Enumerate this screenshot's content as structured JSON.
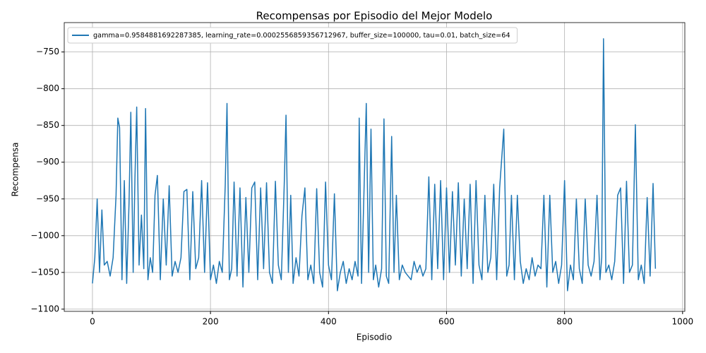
{
  "chart_data": {
    "type": "line",
    "title": "Recompensas por Episodio del Mejor Modelo",
    "x_label": "Episodio",
    "y_label": "Recompensa",
    "grid": true,
    "legend": "upper left",
    "xlim": [
      -47.8,
      1003.8
    ],
    "ylim": [
      -1103,
      -710
    ],
    "xticks": [
      0,
      200,
      400,
      600,
      800,
      1000
    ],
    "yticks": [
      {
        "value": -1100,
        "label": "−1100"
      },
      {
        "value": -1050,
        "label": "−1050"
      },
      {
        "value": -1000,
        "label": "−1000"
      },
      {
        "value": -950,
        "label": "−950"
      },
      {
        "value": -900,
        "label": "−900"
      },
      {
        "value": -850,
        "label": "−850"
      },
      {
        "value": -800,
        "label": "−800"
      },
      {
        "value": -750,
        "label": "−750"
      }
    ],
    "x": [
      0,
      4,
      8,
      12,
      16,
      20,
      25,
      30,
      35,
      40,
      43,
      46,
      50,
      54,
      58,
      62,
      65,
      69,
      72,
      75,
      79,
      83,
      87,
      90,
      94,
      98,
      102,
      106,
      110,
      115,
      120,
      125,
      130,
      135,
      140,
      145,
      150,
      155,
      160,
      165,
      170,
      175,
      180,
      185,
      190,
      195,
      200,
      205,
      210,
      215,
      220,
      225,
      228,
      232,
      236,
      240,
      245,
      250,
      255,
      260,
      265,
      270,
      275,
      280,
      285,
      290,
      295,
      300,
      305,
      310,
      315,
      320,
      325,
      328,
      332,
      336,
      340,
      345,
      350,
      355,
      360,
      365,
      370,
      375,
      380,
      385,
      390,
      395,
      400,
      405,
      410,
      415,
      420,
      425,
      430,
      435,
      440,
      445,
      450,
      452,
      456,
      460,
      464,
      468,
      472,
      476,
      480,
      485,
      490,
      494,
      498,
      502,
      507,
      511,
      515,
      520,
      525,
      530,
      535,
      540,
      545,
      550,
      555,
      560,
      565,
      570,
      575,
      580,
      585,
      590,
      595,
      600,
      605,
      610,
      615,
      620,
      625,
      630,
      635,
      640,
      645,
      650,
      655,
      660,
      665,
      670,
      675,
      680,
      685,
      690,
      697,
      702,
      706,
      710,
      715,
      720,
      725,
      730,
      735,
      740,
      745,
      750,
      755,
      760,
      765,
      770,
      775,
      780,
      785,
      790,
      795,
      800,
      805,
      810,
      815,
      820,
      825,
      830,
      835,
      840,
      845,
      850,
      855,
      860,
      863,
      866,
      870,
      875,
      880,
      885,
      890,
      895,
      900,
      905,
      910,
      915,
      920,
      925,
      930,
      935,
      940,
      945,
      950,
      954
    ],
    "series": [
      {
        "name": "gamma=0.9584881692287385, learning_rate=0.0002556859356712967, buffer_size=100000, tau=0.01, batch_size=64",
        "color": "#1f77b4",
        "values": [
          -1065,
          -1030,
          -950,
          -1050,
          -965,
          -1040,
          -1035,
          -1055,
          -1030,
          -945,
          -840,
          -853,
          -1060,
          -925,
          -1065,
          -955,
          -832,
          -1050,
          -922,
          -825,
          -1040,
          -972,
          -1045,
          -827,
          -1060,
          -1030,
          -1050,
          -945,
          -918,
          -1060,
          -950,
          -1040,
          -932,
          -1055,
          -1035,
          -1050,
          -1030,
          -940,
          -937,
          -1060,
          -940,
          -1045,
          -1030,
          -925,
          -1050,
          -928,
          -1060,
          -1040,
          -1065,
          -1035,
          -1050,
          -931,
          -820,
          -1060,
          -1045,
          -927,
          -1055,
          -935,
          -1070,
          -948,
          -1050,
          -935,
          -927,
          -1060,
          -935,
          -1045,
          -928,
          -1050,
          -1065,
          -926,
          -1040,
          -1060,
          -930,
          -836,
          -1050,
          -945,
          -1065,
          -1030,
          -1055,
          -973,
          -935,
          -1060,
          -1040,
          -1065,
          -936,
          -1050,
          -1070,
          -927,
          -1040,
          -1060,
          -943,
          -1075,
          -1050,
          -1035,
          -1065,
          -1045,
          -1060,
          -1035,
          -1055,
          -840,
          -1065,
          -944,
          -820,
          -1050,
          -855,
          -1060,
          -1040,
          -1070,
          -1045,
          -841,
          -1055,
          -1065,
          -865,
          -1050,
          -945,
          -1060,
          -1040,
          -1050,
          -1055,
          -1060,
          -1035,
          -1050,
          -1040,
          -1055,
          -1045,
          -920,
          -1060,
          -930,
          -1045,
          -925,
          -1060,
          -935,
          -1050,
          -940,
          -1040,
          -928,
          -1055,
          -950,
          -1045,
          -930,
          -1065,
          -925,
          -1040,
          -1060,
          -945,
          -1050,
          -1030,
          -930,
          -1060,
          -935,
          -855,
          -1055,
          -1040,
          -945,
          -1060,
          -945,
          -1035,
          -1065,
          -1045,
          -1060,
          -1030,
          -1055,
          -1040,
          -1045,
          -945,
          -1070,
          -945,
          -1050,
          -1035,
          -1065,
          -1040,
          -925,
          -1075,
          -1040,
          -1060,
          -950,
          -1045,
          -1065,
          -950,
          -1040,
          -1055,
          -1035,
          -945,
          -1060,
          -1030,
          -732,
          -1050,
          -1040,
          -1060,
          -1035,
          -945,
          -935,
          -1065,
          -926,
          -1050,
          -1040,
          -849,
          -1060,
          -1040,
          -1065,
          -948,
          -1055,
          -929,
          -1045
        ]
      }
    ]
  }
}
